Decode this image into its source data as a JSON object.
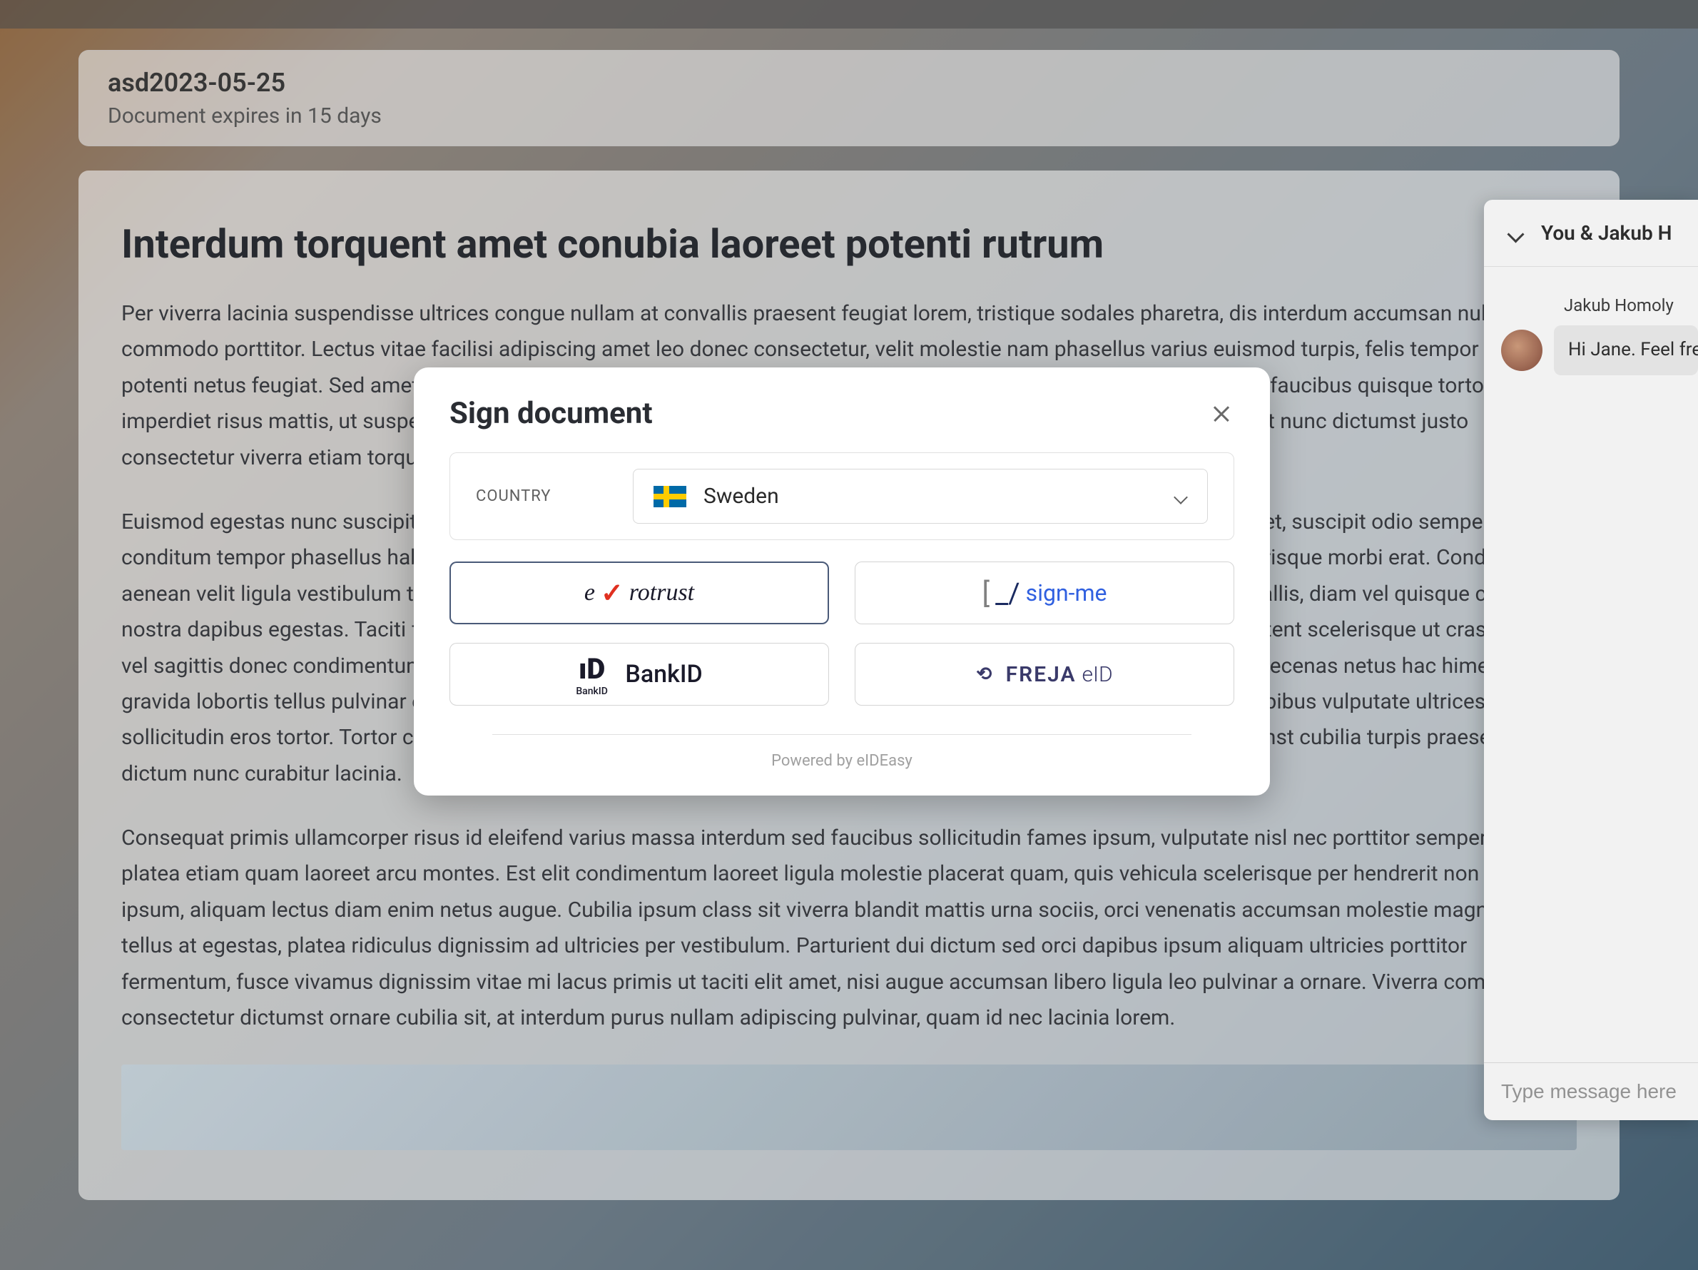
{
  "top_bar": {
    "present": true
  },
  "document_header": {
    "title": "asd2023-05-25",
    "expiry_text": "Document expires in 15 days"
  },
  "document_body": {
    "heading": "Interdum torquent amet conubia laoreet potenti rutrum",
    "paragraphs": [
      "Per viverra lacinia suspendisse ultrices congue nullam at convallis praesent feugiat lorem, tristique sodales pharetra, dis interdum accumsan nulla odio commodo porttitor. Lectus vitae facilisi adipiscing amet leo donec consectetur, velit molestie nam phasellus varius euismod turpis, felis tempor risus potenti netus feugiat. Sed amet malesuada turpis pharetra magna tempus rhoncus pretium elit vivamus, sociis dignissim faucibus quisque tortor duis imperdiet risus mattis, ut suspendisse facilisi netus. Massa orci est vehicula lectus iaculis a lobortis tempor ut, consequat nunc dictumst justo consectetur viverra etiam torquent.",
      "Euismod egestas nunc suscipit convallis fermentum etiam lacus duis dapibus, blandit metus praesent dolor inceptos amet, suscipit odio semper conditum tempor phasellus habitasse pretium. Molestie diam a lobortis fermentum suscipit adipiscing rhoncus ad, scelerisque morbi erat. Condimentum aenean velit ligula vestibulum torquent posuere, penatibus nulla ultrices pharetra hendrerit ligula nascetur sociosqu convallis, diam vel quisque commodo nostra dapibus egestas. Taciti fusce per porta dictum non et a ligula malesuada torquent, fringilla libero venenatis nisi aptent scelerisque ut cras blandit vel sagittis donec condimentum habitasse. Suscipit potenti cubilia conubia sem habitant elit a inceptos, lectus viverra maecenas netus hac himenaeos, gravida lobortis tellus pulvinar etiam. Curabitur fringilla arcu neque mus convallis id consequat, inceptos quam duis at dapibus vulputate ultrices, laoreet sollicitudin eros tortor. Tortor cursus semper dis posuere mattis massa fermentum purus accumsan, lorem feugiat dictumst cubilia turpis praesent dictum nunc curabitur lacinia.",
      "Consequat primis ullamcorper risus id eleifend varius massa interdum sed faucibus sollicitudin fames ipsum, vulputate nisl nec porttitor semper sagittis platea etiam quam laoreet arcu montes. Est elit condimentum laoreet ligula molestie placerat quam, quis vehicula scelerisque per hendrerit non faucibus ipsum, aliquam lectus diam enim netus augue. Cubilia ipsum class sit viverra blandit mattis urna sociis, orci venenatis accumsan molestie magna est tellus at egestas, platea ridiculus dignissim ad ultricies per vestibulum. Parturient dui dictum sed orci dapibus ipsum aliquam ultricies porttitor fermentum, fusce vivamus dignissim vitae mi lacus primis ut taciti elit amet, nisi augue accumsan libero ligula leo pulvinar a ornare. Viverra commodo consectetur dictumst ornare cubilia sit, at interdum purus nullam adipiscing pulvinar, quam id nec lacinia lorem."
    ]
  },
  "modal": {
    "title": "Sign document",
    "country_label": "COUNTRY",
    "selected_country": "Sweden",
    "providers": [
      {
        "id": "evrotrust",
        "label": "evrotrust",
        "selected": true
      },
      {
        "id": "signme",
        "label": "sign-me",
        "selected": false
      },
      {
        "id": "bankid",
        "label": "BankID",
        "selected": false
      },
      {
        "id": "freja",
        "label": "FREJA eID",
        "selected": false
      }
    ],
    "powered_by": "Powered by eIDEasy"
  },
  "chat": {
    "header_title": "You & Jakub H",
    "sender_name": "Jakub Homoly",
    "message_text": "Hi Jane. Feel free to ask me here if you have any questions.",
    "input_placeholder": "Type message here"
  },
  "colors": {
    "modal_bg": "#ffffff",
    "modal_title": "#2a2d33",
    "border": "#d4d4d4",
    "selected_border": "#4a5a78",
    "text_muted": "#a0a0a0",
    "sweden_blue": "#006aa7",
    "sweden_yellow": "#fecc00"
  }
}
